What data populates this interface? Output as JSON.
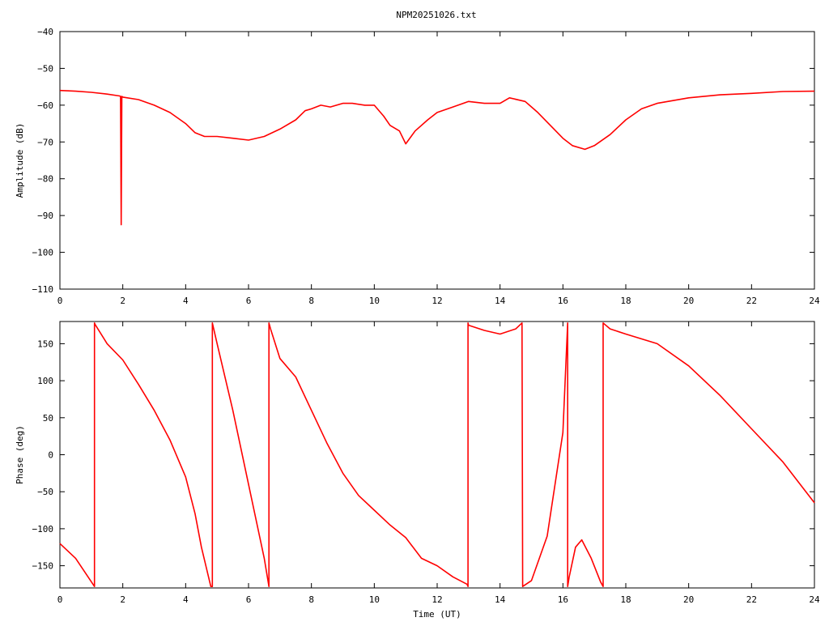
{
  "title": "NPM20251026.txt",
  "chart_data": [
    {
      "id": "amplitude",
      "type": "line",
      "title": "NPM20251026.txt",
      "xlabel": "",
      "ylabel": "Amplitude (dB)",
      "xlim": [
        0,
        24
      ],
      "ylim": [
        -110,
        -40
      ],
      "xticks": [
        0,
        2,
        4,
        6,
        8,
        10,
        12,
        14,
        16,
        18,
        20,
        22,
        24
      ],
      "yticks": [
        -110,
        -100,
        -90,
        -80,
        -70,
        -60,
        -50,
        -40
      ],
      "grid": false,
      "color": "#ff0000",
      "series": [
        {
          "x": [
            0,
            0.5,
            1.0,
            1.5,
            1.9,
            1.93,
            1.95,
            1.97,
            2.0,
            2.5,
            3.0,
            3.5,
            4.0,
            4.3,
            4.6,
            5.0,
            5.5,
            6.0,
            6.5,
            7.0,
            7.5,
            7.8,
            8.0,
            8.3,
            8.6,
            9.0,
            9.3,
            9.7,
            10.0,
            10.3,
            10.5,
            10.8,
            11.0,
            11.3,
            11.7,
            12.0,
            12.5,
            13.0,
            13.5,
            14.0,
            14.3,
            14.8,
            15.2,
            15.6,
            16.0,
            16.3,
            16.7,
            17.0,
            17.5,
            18.0,
            18.5,
            19.0,
            20.0,
            21.0,
            22.0,
            23.0,
            24.0
          ],
          "y": [
            -56,
            -56.2,
            -56.5,
            -57,
            -57.5,
            -57.6,
            -92.5,
            -57.6,
            -57.8,
            -58.5,
            -60,
            -62,
            -65,
            -67.5,
            -68.5,
            -68.5,
            -69,
            -69.5,
            -68.5,
            -66.5,
            -64,
            -61.5,
            -61,
            -60,
            -60.5,
            -59.5,
            -59.5,
            -60,
            -60,
            -63,
            -65.5,
            -67,
            -70.5,
            -67,
            -64,
            -62,
            -60.5,
            -59,
            -59.5,
            -59.5,
            -58,
            -59,
            -62,
            -65.5,
            -69,
            -71,
            -72,
            -71,
            -68,
            -64,
            -61,
            -59.5,
            -58,
            -57.2,
            -56.8,
            -56.3,
            -56.2
          ]
        }
      ]
    },
    {
      "id": "phase",
      "type": "line",
      "title": "",
      "xlabel": "Time (UT)",
      "ylabel": "Phase (deg)",
      "xlim": [
        0,
        24
      ],
      "ylim": [
        -180,
        180
      ],
      "xticks": [
        0,
        2,
        4,
        6,
        8,
        10,
        12,
        14,
        16,
        18,
        20,
        22,
        24
      ],
      "yticks": [
        -150,
        -100,
        -50,
        0,
        50,
        100,
        150
      ],
      "grid": false,
      "color": "#ff0000",
      "series": [
        {
          "x": [
            0,
            0.5,
            1.1,
            1.1,
            1.12,
            1.5,
            2.0,
            2.5,
            3.0,
            3.5,
            4.0,
            4.3,
            4.5,
            4.8,
            4.85,
            4.85,
            5.0,
            5.5,
            6.0,
            6.5,
            6.65,
            6.65,
            6.7,
            7.0,
            7.5,
            8.0,
            8.5,
            9.0,
            9.5,
            10.0,
            10.5,
            11.0,
            11.5,
            12.0,
            12.5,
            12.95,
            12.98,
            12.98,
            13.0,
            13.5,
            14.0,
            14.5,
            14.7,
            14.72,
            14.72,
            15.0,
            15.5,
            16.0,
            16.15,
            16.15,
            16.2,
            16.4,
            16.6,
            16.9,
            17.2,
            17.28,
            17.28,
            17.5,
            18.0,
            19.0,
            20.0,
            21.0,
            22.0,
            23.0,
            24.0
          ],
          "y": [
            -120,
            -140,
            -178,
            178,
            176,
            150,
            128,
            95,
            60,
            20,
            -30,
            -80,
            -125,
            -178,
            -178,
            178,
            150,
            60,
            -40,
            -140,
            -178,
            178,
            170,
            130,
            105,
            60,
            15,
            -25,
            -55,
            -75,
            -95,
            -112,
            -140,
            -150,
            -165,
            -175,
            -178,
            178,
            175,
            168,
            163,
            170,
            178,
            -178,
            -178,
            -170,
            -110,
            30,
            178,
            -178,
            -165,
            -125,
            -115,
            -140,
            -172,
            -178,
            178,
            170,
            163,
            150,
            120,
            80,
            35,
            -10,
            -65
          ]
        }
      ]
    }
  ]
}
